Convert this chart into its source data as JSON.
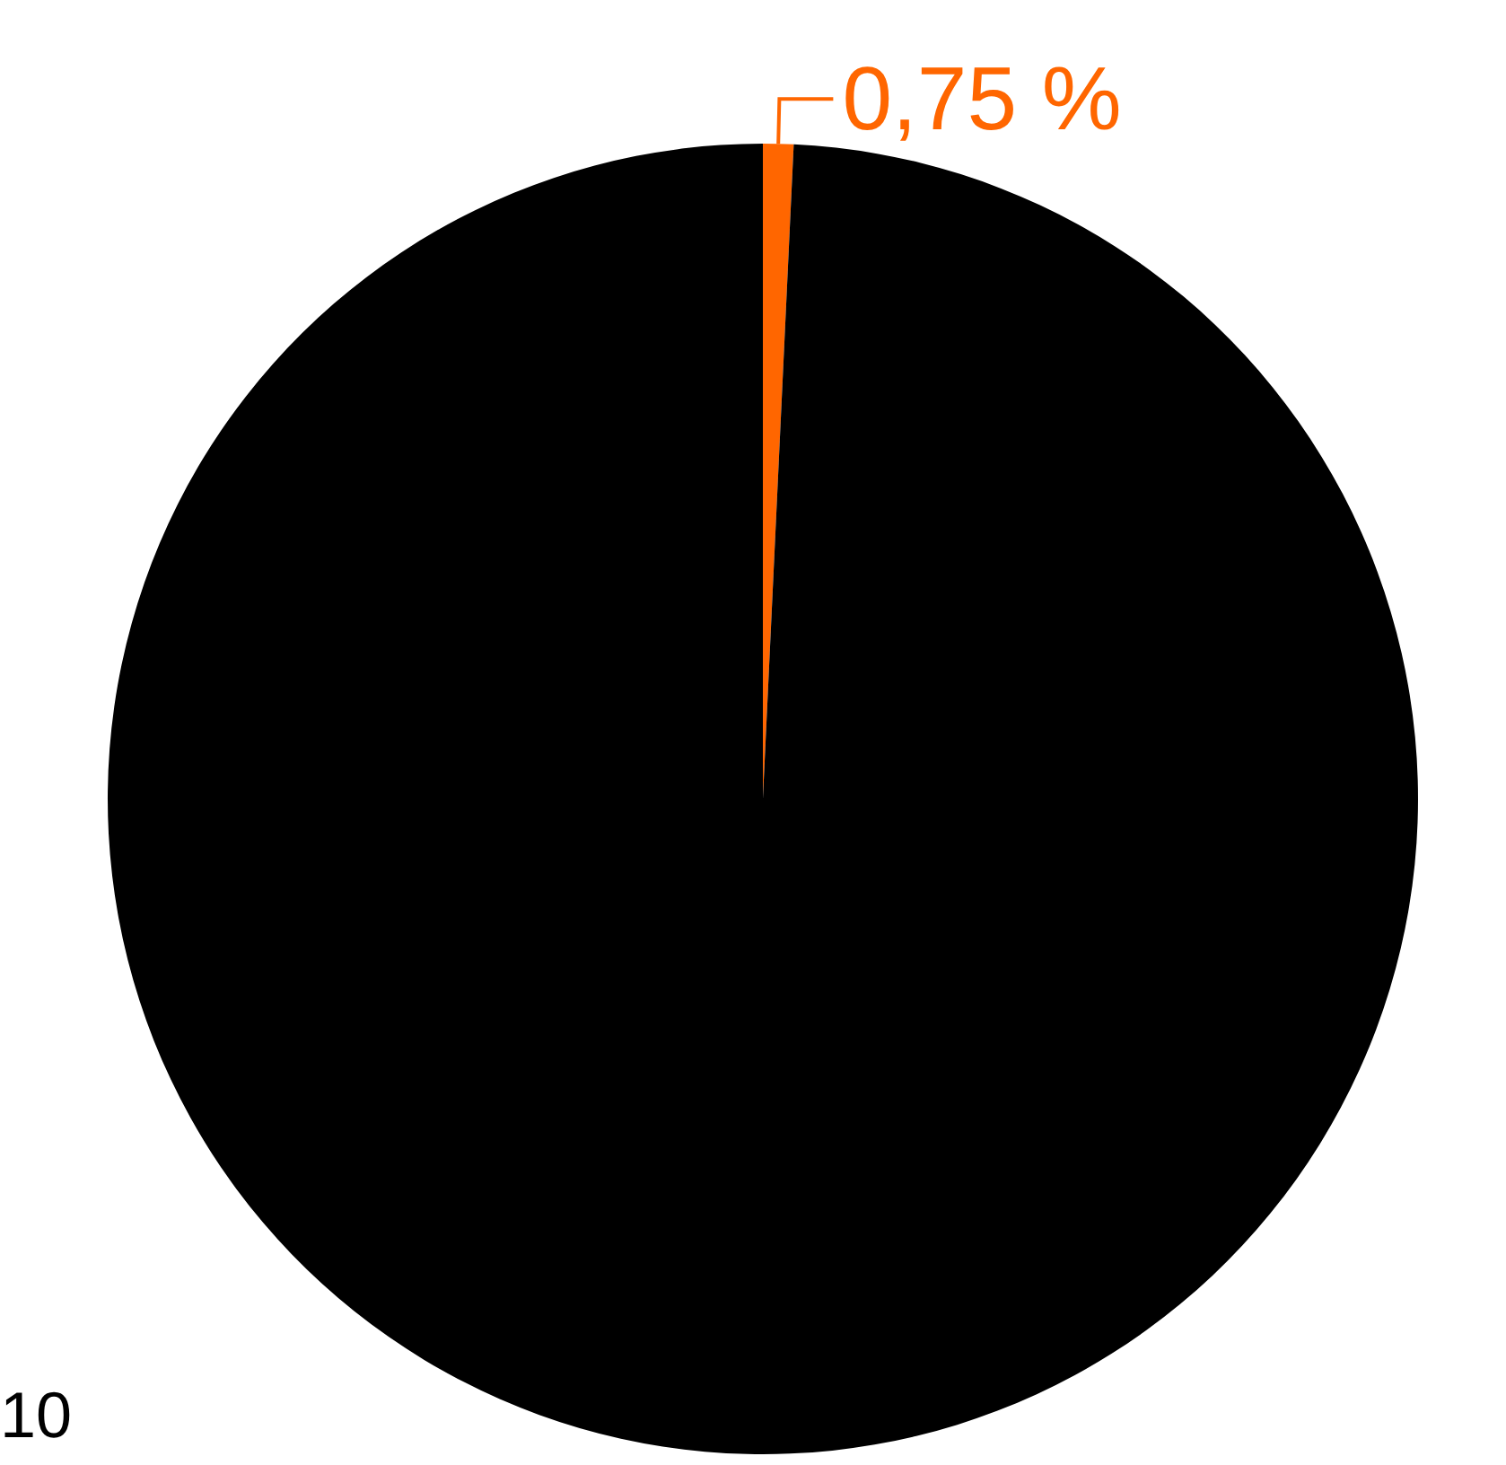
{
  "chart_data": {
    "type": "pie",
    "categories": [
      null,
      null
    ],
    "values": [
      0.75,
      99.25
    ],
    "colors": [
      "#ff6600",
      "#000000"
    ],
    "value_labels": [
      "0,75 %",
      null
    ],
    "annotations": [
      "10"
    ]
  }
}
